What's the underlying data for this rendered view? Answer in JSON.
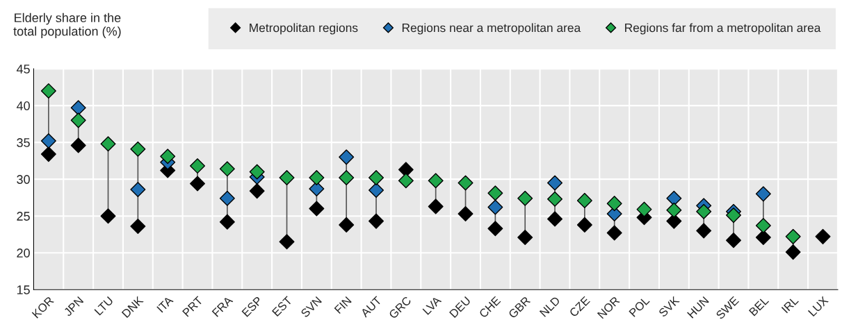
{
  "chart_data": {
    "type": "scatter",
    "ylabel": "Elderly share in the total population (%)",
    "categories": [
      "KOR",
      "JPN",
      "LTU",
      "DNK",
      "ITA",
      "PRT",
      "FRA",
      "ESP",
      "EST",
      "SVN",
      "FIN",
      "AUT",
      "GRC",
      "LVA",
      "DEU",
      "CHE",
      "GBR",
      "NLD",
      "CZE",
      "NOR",
      "POL",
      "SVK",
      "HUN",
      "SWE",
      "BEL",
      "IRL",
      "LUX"
    ],
    "series": [
      {
        "name": "Metropolitan regions",
        "color": "#000000",
        "values": [
          33.4,
          34.6,
          25.0,
          23.6,
          31.2,
          29.4,
          24.2,
          28.4,
          21.5,
          26.0,
          23.8,
          24.3,
          31.3,
          26.3,
          25.3,
          23.3,
          22.1,
          24.6,
          23.8,
          22.7,
          24.8,
          24.3,
          23.0,
          21.7,
          22.1,
          20.1,
          22.2
        ]
      },
      {
        "name": "Regions near a metropolitan area",
        "color": "#1f6fb4",
        "values": [
          35.2,
          39.7,
          null,
          28.6,
          32.3,
          null,
          27.4,
          30.3,
          null,
          28.7,
          33.0,
          28.5,
          null,
          null,
          null,
          26.2,
          null,
          29.5,
          null,
          25.3,
          null,
          27.4,
          26.4,
          25.6,
          28.0,
          null,
          null
        ]
      },
      {
        "name": "Regions far from a metropolitan area",
        "color": "#1fa64a",
        "values": [
          42.0,
          38.0,
          34.8,
          34.1,
          33.1,
          31.8,
          31.4,
          31.0,
          30.2,
          30.2,
          30.2,
          30.2,
          29.8,
          29.8,
          29.5,
          28.1,
          27.4,
          27.3,
          27.1,
          26.7,
          25.9,
          25.8,
          25.6,
          25.1,
          23.7,
          22.2,
          null
        ]
      }
    ],
    "ylim": [
      15,
      45
    ],
    "yticks": [
      15,
      20,
      25,
      30,
      35,
      40,
      45
    ],
    "grid": true,
    "legend": "top",
    "marker": "diamond"
  }
}
